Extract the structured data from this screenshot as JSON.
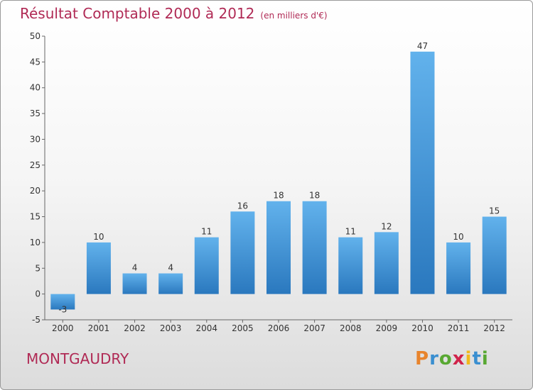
{
  "header": {
    "title": "Résultat Comptable 2000 à 2012",
    "subtitle": "(en milliers d'€)"
  },
  "footer": {
    "commune": "MONTGAUDRY",
    "logo": {
      "letters": [
        "P",
        "r",
        "o",
        "x",
        "i",
        "t",
        "i"
      ],
      "colors": [
        "#e8842c",
        "#3a8fd0",
        "#58a832",
        "#d0234a",
        "#f2b81c",
        "#3a8fd0",
        "#58a832"
      ]
    }
  },
  "chart_data": {
    "type": "bar",
    "title": "Résultat Comptable 2000 à 2012",
    "subtitle": "(en milliers d'€)",
    "categories": [
      "2000",
      "2001",
      "2002",
      "2003",
      "2004",
      "2005",
      "2006",
      "2007",
      "2008",
      "2009",
      "2010",
      "2011",
      "2012"
    ],
    "values": [
      -3,
      10,
      4,
      4,
      11,
      16,
      18,
      18,
      11,
      12,
      47,
      10,
      15
    ],
    "ylim": [
      -5,
      50
    ],
    "yticks": [
      -5,
      0,
      5,
      10,
      15,
      20,
      25,
      30,
      35,
      40,
      45,
      50
    ],
    "xlabel": "",
    "ylabel": "",
    "grid": false,
    "bar_color": "#3d8fd6"
  }
}
